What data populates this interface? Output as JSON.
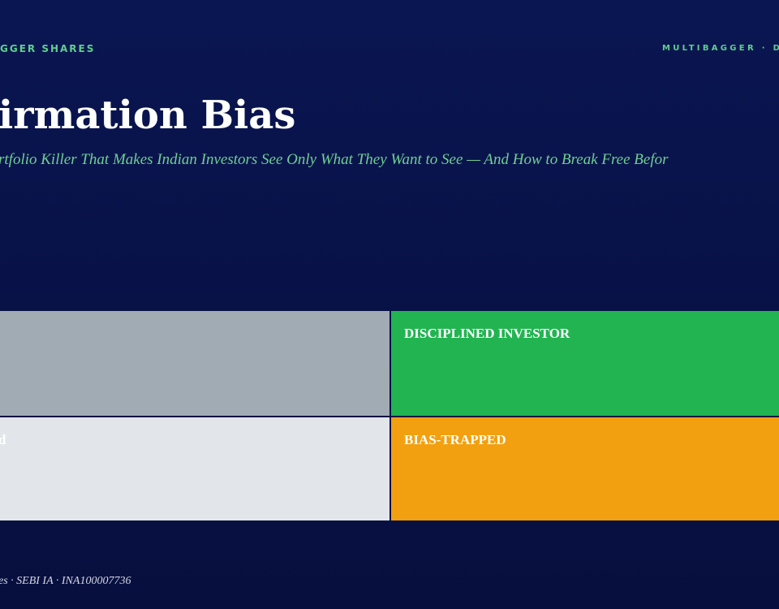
{
  "header": {
    "left_label": "GGER SHARES",
    "right_label": "MULTIBAGGER · D"
  },
  "title": "irmation Bias",
  "subtitle": "rtfolio Killer That Makes Indian Investors See Only What They Want to See — And How to Break Free Befor",
  "matrix": {
    "top_right": "DISCIPLINED INVESTOR",
    "bottom_left": "d",
    "bottom_right": "BIAS-TRAPPED"
  },
  "footer": "es · SEBI IA · INA100007736"
}
